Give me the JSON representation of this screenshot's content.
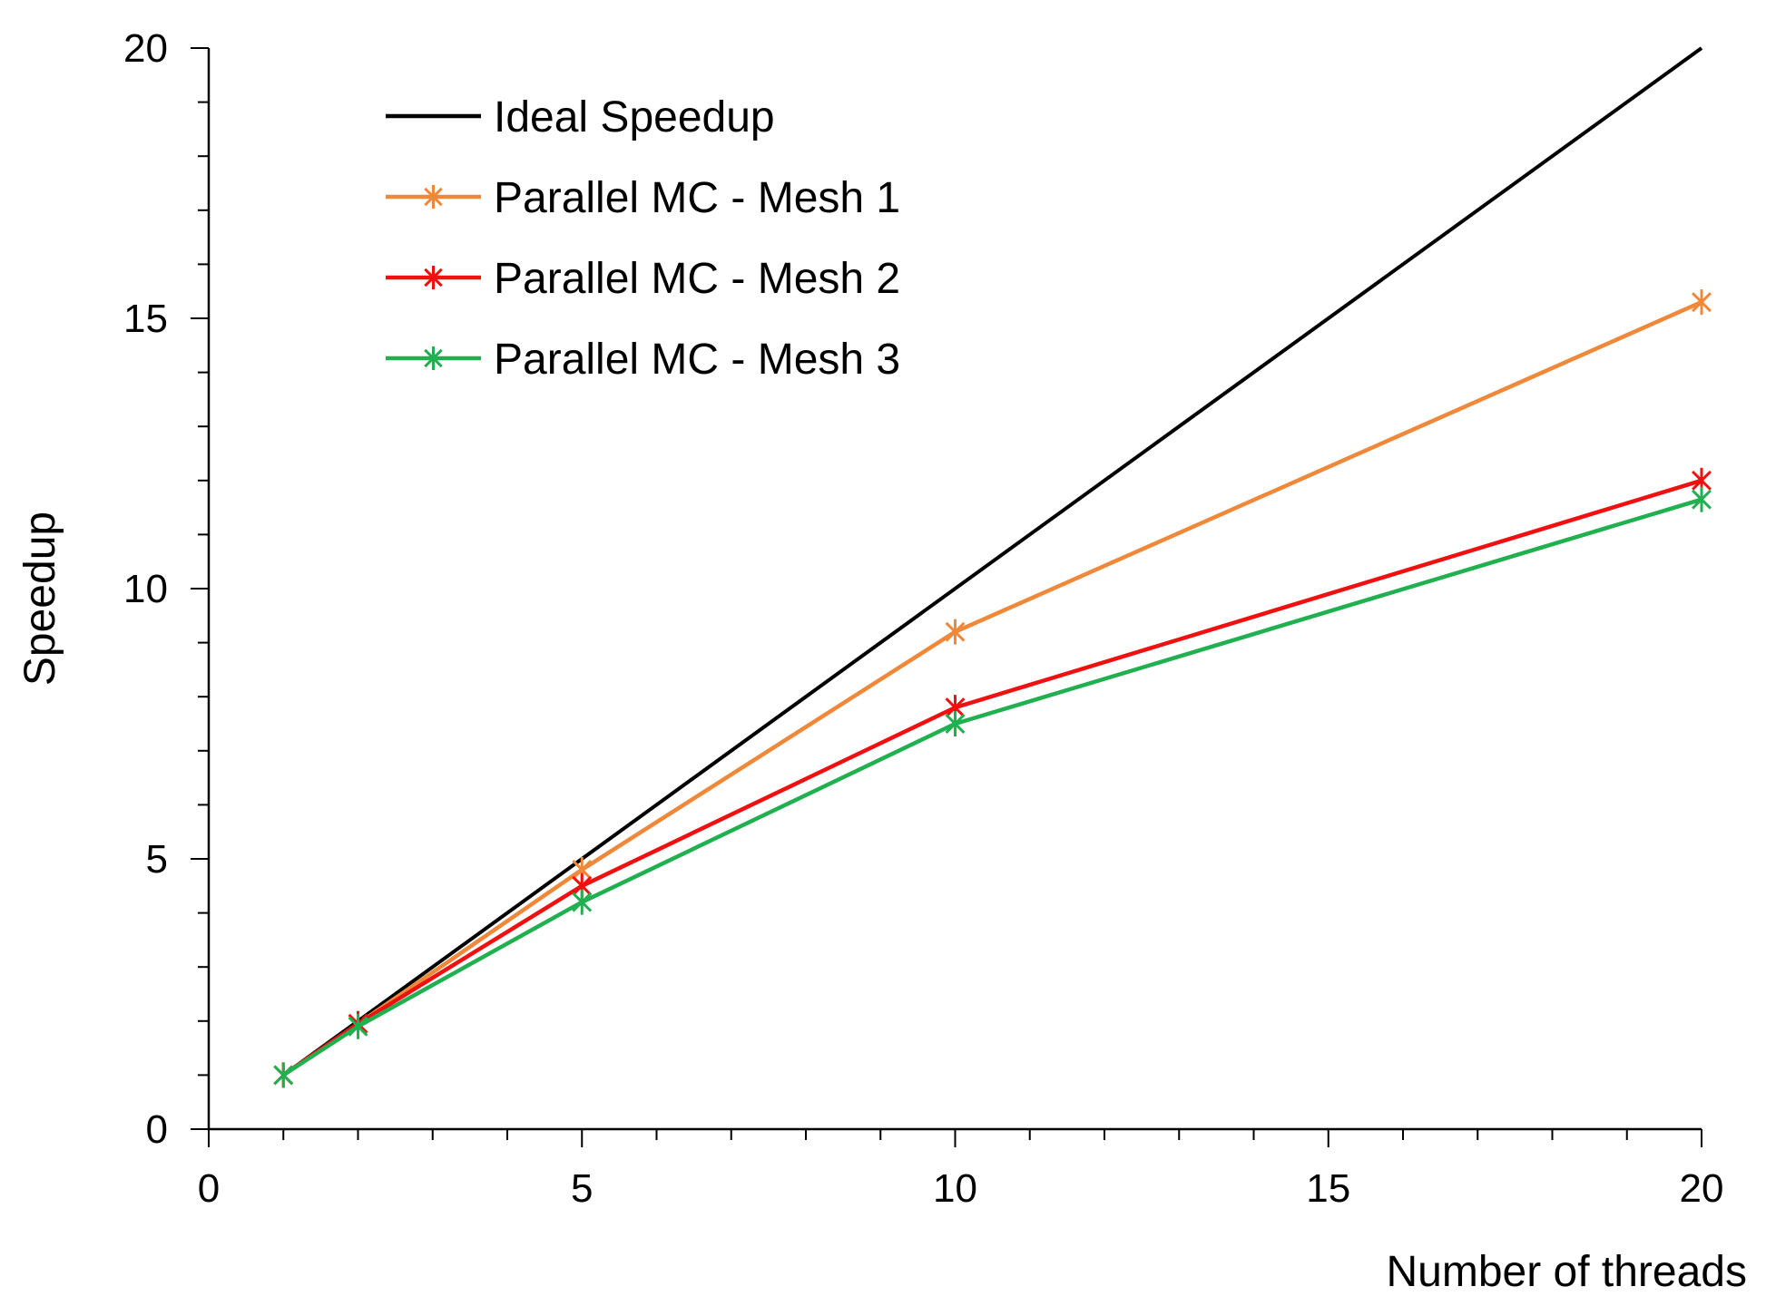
{
  "chart_data": {
    "type": "line",
    "title": "",
    "xlabel": "Number of threads",
    "ylabel": "Speedup",
    "xlim": [
      0,
      20
    ],
    "ylim": [
      0,
      20
    ],
    "x_ticks": [
      0,
      5,
      10,
      15,
      20
    ],
    "y_ticks": [
      0,
      5,
      10,
      15,
      20
    ],
    "x_minor_step": 1,
    "y_minor_step": 1,
    "grid": false,
    "legend_position": "top-left",
    "series": [
      {
        "name": "Ideal Speedup",
        "color": "#000000",
        "marker": "none",
        "x": [
          1,
          20
        ],
        "y": [
          1,
          20
        ]
      },
      {
        "name": "Parallel MC - Mesh 1",
        "color": "#f0883a",
        "marker": "asterisk",
        "x": [
          1,
          2,
          5,
          10,
          20
        ],
        "y": [
          1.0,
          1.95,
          4.8,
          9.2,
          15.3
        ]
      },
      {
        "name": "Parallel MC - Mesh 2",
        "color": "#f01010",
        "marker": "asterisk",
        "x": [
          1,
          2,
          5,
          10,
          20
        ],
        "y": [
          1.0,
          1.95,
          4.5,
          7.8,
          12.0
        ]
      },
      {
        "name": "Parallel MC - Mesh 3",
        "color": "#20b050",
        "marker": "asterisk",
        "x": [
          1,
          2,
          5,
          10,
          20
        ],
        "y": [
          1.0,
          1.9,
          4.2,
          7.5,
          11.65
        ]
      }
    ]
  }
}
